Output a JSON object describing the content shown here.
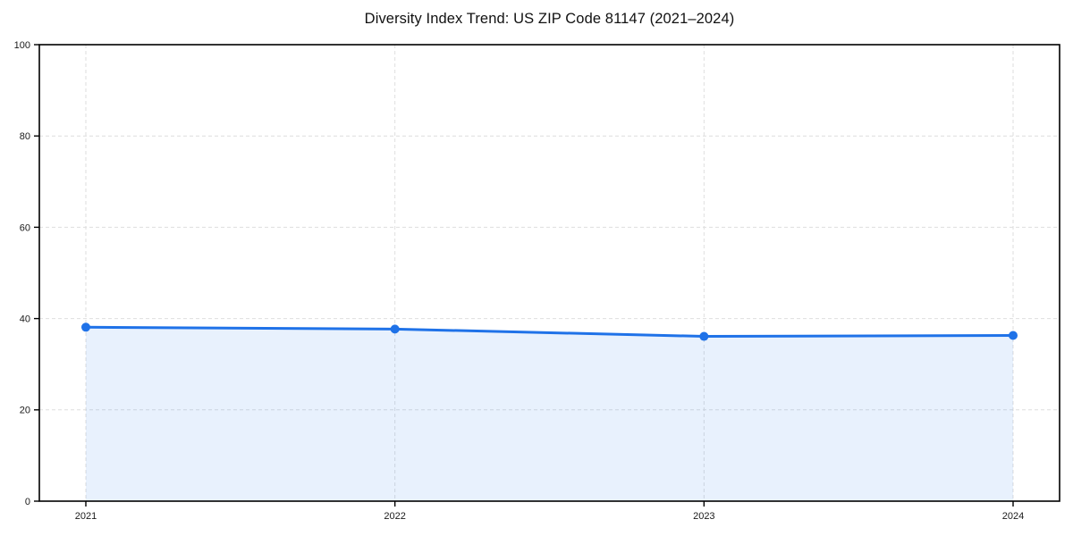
{
  "title": "Diversity Index Trend: US ZIP Code 81147 (2021–2024)",
  "chart_data": {
    "type": "area",
    "title": "Diversity Index Trend: US ZIP Code 81147 (2021–2024)",
    "categories": [
      "2021",
      "2022",
      "2023",
      "2024"
    ],
    "series": [
      {
        "name": "Diversity Index",
        "values": [
          38.1,
          37.7,
          36.1,
          36.3
        ]
      }
    ],
    "xlabel": "",
    "ylabel": "",
    "ylim": [
      0,
      100
    ],
    "yticks": [
      0,
      20,
      40,
      60,
      80,
      100
    ],
    "grid": "dashed both",
    "legend": "none",
    "colors": {
      "line": "#1f72e8",
      "marker": "#1f72e8",
      "fill": "rgba(31,114,232,0.10)",
      "gridline": "#dedede",
      "axis": "#000000",
      "text": "#1a1a1a",
      "background": "#ffffff"
    }
  }
}
